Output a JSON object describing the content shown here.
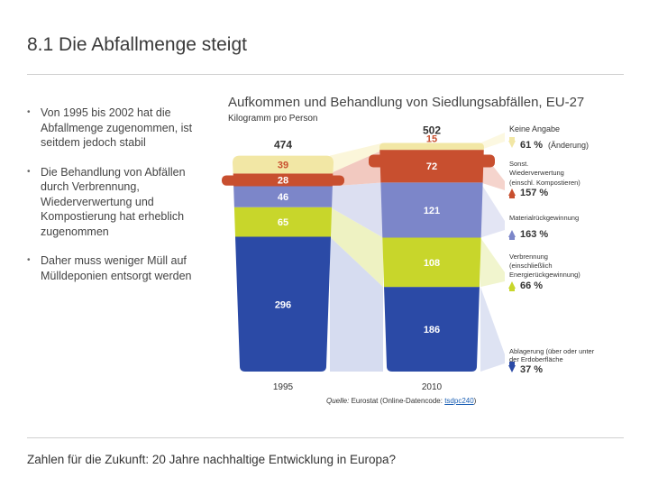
{
  "slide": {
    "title": "8.1 Die Abfallmenge steigt",
    "bullets": [
      "Von 1995 bis 2002 hat die Abfallmenge zugenommen, ist seitdem jedoch stabil",
      "Die Behandlung von Abfällen durch Verbrennung, Wiederverwertung und Kompostierung hat erheblich zugenommen",
      "Daher muss weniger Müll auf Mülldeponien entsorgt werden"
    ],
    "footer": "Zahlen für die Zukunft: 20 Jahre nachhaltige Entwicklung in Europa?"
  },
  "source": {
    "label": "Quelle:",
    "text": " Eurostat (Online-Datencode: ",
    "code": "tsdpc240",
    "close": ")"
  },
  "chart_data": {
    "type": "bar",
    "stacked": true,
    "title": "Aufkommen und Behandlung von Siedlungsabfällen, EU-27",
    "ylabel": "Kilogramm pro Person",
    "categories": [
      "1995",
      "2010"
    ],
    "totals": [
      474,
      502
    ],
    "series": [
      {
        "name": "Ablagerung (über oder unter der Erdoberfläche",
        "values": [
          296,
          186
        ],
        "color": "#2b4aa6",
        "change": "37 %",
        "direction": "down"
      },
      {
        "name": "Verbrennung (einschließlich Energierückgewinnung)",
        "values": [
          65,
          108
        ],
        "color": "#c8d62b",
        "change": "66 %",
        "direction": "up"
      },
      {
        "name": "Materialrückgewinnung",
        "values": [
          46,
          121
        ],
        "color": "#7c86c9",
        "change": "163 %",
        "direction": "up"
      },
      {
        "name": "Sonst. Wiederverwertung (einschl. Kompostieren)",
        "values": [
          28,
          72
        ],
        "color": "#c84f2f",
        "change": "157 %",
        "direction": "up"
      },
      {
        "name": "Keine Angabe",
        "values": [
          39,
          15
        ],
        "color": "#f2e7a5",
        "change": "61 %",
        "direction": "down"
      }
    ],
    "legend_extra": "(Änderung)",
    "legend_position": "right"
  }
}
